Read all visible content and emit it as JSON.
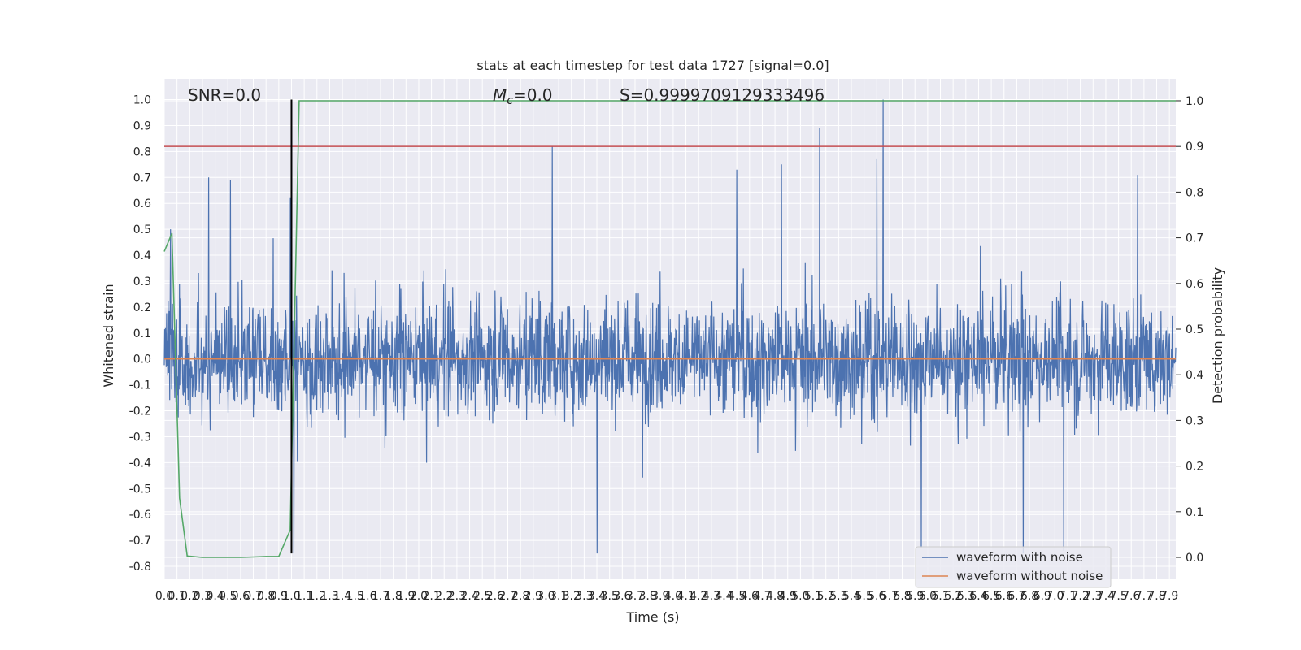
{
  "chart_data": {
    "type": "line",
    "title": "stats at each timestep for test data 1727 [signal=0.0]",
    "xlabel": "Time (s)",
    "ylabel": "Whitened strain",
    "y2label": "Detection probability",
    "xlim": [
      0.0,
      7.95
    ],
    "ylim": [
      -0.85,
      1.08
    ],
    "y2lim": [
      -0.048,
      1.048
    ],
    "grid": true,
    "legend_placement": "lower-right",
    "x_ticks": [
      0.0,
      0.1,
      0.2,
      0.3,
      0.4,
      0.5,
      0.6,
      0.7,
      0.8,
      0.9,
      1.0,
      1.1,
      1.2,
      1.3,
      1.4,
      1.5,
      1.6,
      1.7,
      1.8,
      1.9,
      2.0,
      2.1,
      2.2,
      2.3,
      2.4,
      2.5,
      2.6,
      2.7,
      2.8,
      2.9,
      3.0,
      3.1,
      3.2,
      3.3,
      3.4,
      3.5,
      3.6,
      3.7,
      3.8,
      3.9,
      4.0,
      4.1,
      4.2,
      4.3,
      4.4,
      4.5,
      4.6,
      4.7,
      4.8,
      4.9,
      5.0,
      5.1,
      5.2,
      5.3,
      5.4,
      5.5,
      5.6,
      5.7,
      5.8,
      5.9,
      6.0,
      6.1,
      6.2,
      6.3,
      6.4,
      6.5,
      6.6,
      6.7,
      6.8,
      6.9,
      7.0,
      7.1,
      7.2,
      7.3,
      7.4,
      7.5,
      7.6,
      7.7,
      7.8,
      7.9
    ],
    "y_ticks": [
      -0.8,
      -0.7,
      -0.6,
      -0.5,
      -0.4,
      -0.3,
      -0.2,
      -0.1,
      0.0,
      0.1,
      0.2,
      0.3,
      0.4,
      0.5,
      0.6,
      0.7,
      0.8,
      0.9,
      1.0
    ],
    "y2_ticks": [
      0.0,
      0.1,
      0.2,
      0.3,
      0.4,
      0.5,
      0.6,
      0.7,
      0.8,
      0.9,
      1.0
    ],
    "annotations": {
      "snr": "SNR=0.0",
      "mc_symbol": "M",
      "mc_sub": "c",
      "mc_value": "=0.0",
      "score": "S=0.9999709129333496"
    },
    "vertical_marker_x": 1.0,
    "threshold_line_y2": 0.9,
    "colors": {
      "noise": "#4c72b0",
      "clean": "#dd8452",
      "prob": "#55a868",
      "threshold": "#c44e52",
      "marker": "#000000",
      "axes_bg": "#eaeaf2",
      "grid": "#ffffff"
    },
    "series": [
      {
        "name": "waveform with noise",
        "color": "#4c72b0",
        "style": "noise",
        "x_range": [
          0.0,
          7.95
        ],
        "amplitude": 0.2,
        "peaks": [
          {
            "x": 0.05,
            "y": 0.5
          },
          {
            "x": 0.35,
            "y": 0.7
          },
          {
            "x": 0.52,
            "y": 0.69
          },
          {
            "x": 3.05,
            "y": 0.82
          },
          {
            "x": 3.4,
            "y": -0.75
          },
          {
            "x": 4.5,
            "y": 0.73
          },
          {
            "x": 4.85,
            "y": 0.75
          },
          {
            "x": 5.15,
            "y": 0.89
          },
          {
            "x": 5.6,
            "y": 0.77
          },
          {
            "x": 5.65,
            "y": 1.0
          },
          {
            "x": 5.95,
            "y": -0.73
          },
          {
            "x": 6.75,
            "y": -0.75
          },
          {
            "x": 7.07,
            "y": -0.74
          },
          {
            "x": 7.65,
            "y": 0.71
          },
          {
            "x": 1.02,
            "y": -0.75
          },
          {
            "x": 0.99,
            "y": 0.62
          }
        ]
      },
      {
        "name": "waveform without noise",
        "color": "#dd8452",
        "x": [
          0.0,
          7.95
        ],
        "y": [
          0.0,
          0.0
        ]
      },
      {
        "name": "",
        "color": "#55a868",
        "axis": "y2",
        "x": [
          0.0,
          0.06,
          0.12,
          0.18,
          0.3,
          0.45,
          0.6,
          0.7,
          0.8,
          0.9,
          0.99,
          1.06,
          1.12,
          1.2,
          7.95
        ],
        "y": [
          0.67,
          0.71,
          0.13,
          0.003,
          0.0,
          0.0,
          0.0,
          0.001,
          0.002,
          0.002,
          0.06,
          1.0,
          1.0,
          1.0,
          1.0
        ]
      }
    ]
  }
}
